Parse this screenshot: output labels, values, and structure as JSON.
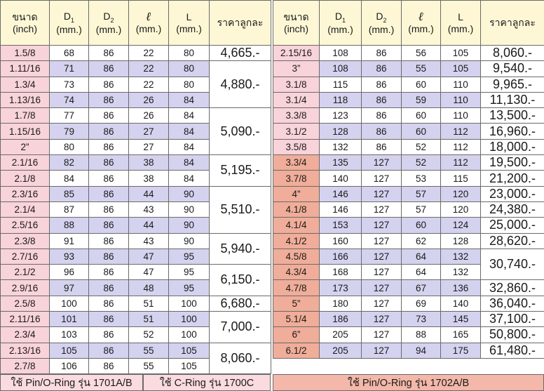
{
  "headers": {
    "size": [
      "ขนาด",
      "(inch)"
    ],
    "d1_main": "D",
    "d1_sub": "1",
    "d2_main": "D",
    "d2_sub": "2",
    "l_symbol": "ℓ",
    "l_unit": "(mm.)",
    "big_l": "L",
    "mm": "(mm.)",
    "price": "ราคาลูกละ"
  },
  "left_rows": [
    {
      "size": "1.5/8",
      "d1": "68",
      "d2": "86",
      "l": "22",
      "L": "80"
    },
    {
      "size": "1.11/16",
      "d1": "71",
      "d2": "86",
      "l": "22",
      "L": "80"
    },
    {
      "size": "1.3/4",
      "d1": "73",
      "d2": "86",
      "l": "22",
      "L": "80"
    },
    {
      "size": "1.13/16",
      "d1": "74",
      "d2": "86",
      "l": "26",
      "L": "84"
    },
    {
      "size": "1.7/8",
      "d1": "77",
      "d2": "86",
      "l": "26",
      "L": "84"
    },
    {
      "size": "1.15/16",
      "d1": "79",
      "d2": "86",
      "l": "27",
      "L": "84"
    },
    {
      "size": "2”",
      "d1": "80",
      "d2": "86",
      "l": "27",
      "L": "84"
    },
    {
      "size": "2.1/16",
      "d1": "82",
      "d2": "86",
      "l": "38",
      "L": "84"
    },
    {
      "size": "2.1/8",
      "d1": "84",
      "d2": "86",
      "l": "38",
      "L": "84"
    },
    {
      "size": "2.3/16",
      "d1": "85",
      "d2": "86",
      "l": "44",
      "L": "90"
    },
    {
      "size": "2.1/4",
      "d1": "87",
      "d2": "86",
      "l": "43",
      "L": "90"
    },
    {
      "size": "2.5/16",
      "d1": "88",
      "d2": "86",
      "l": "44",
      "L": "90"
    },
    {
      "size": "2.3/8",
      "d1": "91",
      "d2": "86",
      "l": "43",
      "L": "90"
    },
    {
      "size": "2.7/16",
      "d1": "93",
      "d2": "86",
      "l": "47",
      "L": "95"
    },
    {
      "size": "2.1/2",
      "d1": "96",
      "d2": "86",
      "l": "47",
      "L": "95"
    },
    {
      "size": "2.9/16",
      "d1": "97",
      "d2": "86",
      "l": "48",
      "L": "95"
    },
    {
      "size": "2.5/8",
      "d1": "100",
      "d2": "86",
      "l": "51",
      "L": "100"
    },
    {
      "size": "2.11/16",
      "d1": "101",
      "d2": "86",
      "l": "51",
      "L": "100"
    },
    {
      "size": "2.3/4",
      "d1": "103",
      "d2": "86",
      "l": "52",
      "L": "100"
    },
    {
      "size": "2.13/16",
      "d1": "105",
      "d2": "86",
      "l": "55",
      "L": "105"
    },
    {
      "size": "2.7/8",
      "d1": "106",
      "d2": "86",
      "l": "55",
      "L": "105"
    }
  ],
  "left_prices": [
    "4,665.-",
    "4,880.-",
    "5,090.-",
    "5,195.-",
    "5,510.-",
    "5,940.-",
    "6,150.-",
    "6,680.-",
    "7,000.-",
    "8,060.-"
  ],
  "right_rows": [
    {
      "size": "2.15/16",
      "d1": "108",
      "d2": "86",
      "l": "56",
      "L": "105"
    },
    {
      "size": "3”",
      "d1": "108",
      "d2": "86",
      "l": "55",
      "L": "105"
    },
    {
      "size": "3.1/8",
      "d1": "115",
      "d2": "86",
      "l": "60",
      "L": "110"
    },
    {
      "size": "3.1/4",
      "d1": "118",
      "d2": "86",
      "l": "59",
      "L": "110"
    },
    {
      "size": "3.3/8",
      "d1": "123",
      "d2": "86",
      "l": "60",
      "L": "110"
    },
    {
      "size": "3.1/2",
      "d1": "128",
      "d2": "86",
      "l": "60",
      "L": "112"
    },
    {
      "size": "3.5/8",
      "d1": "132",
      "d2": "86",
      "l": "52",
      "L": "112"
    },
    {
      "size": "3.3/4",
      "d1": "135",
      "d2": "127",
      "l": "52",
      "L": "112"
    },
    {
      "size": "3.7/8",
      "d1": "140",
      "d2": "127",
      "l": "53",
      "L": "115"
    },
    {
      "size": "4”",
      "d1": "146",
      "d2": "127",
      "l": "57",
      "L": "120"
    },
    {
      "size": "4.1/8",
      "d1": "146",
      "d2": "127",
      "l": "57",
      "L": "120"
    },
    {
      "size": "4.1/4",
      "d1": "153",
      "d2": "127",
      "l": "60",
      "L": "124"
    },
    {
      "size": "4.1/2",
      "d1": "160",
      "d2": "127",
      "l": "62",
      "L": "128"
    },
    {
      "size": "4.5/8",
      "d1": "166",
      "d2": "127",
      "l": "64",
      "L": "132"
    },
    {
      "size": "4.3/4",
      "d1": "168",
      "d2": "127",
      "l": "64",
      "L": "132"
    },
    {
      "size": "4.7/8",
      "d1": "173",
      "d2": "127",
      "l": "67",
      "L": "136"
    },
    {
      "size": "5”",
      "d1": "180",
      "d2": "127",
      "l": "69",
      "L": "140"
    },
    {
      "size": "5.1/4",
      "d1": "186",
      "d2": "127",
      "l": "73",
      "L": "145"
    },
    {
      "size": "6”",
      "d1": "205",
      "d2": "127",
      "l": "88",
      "L": "165"
    },
    {
      "size": "6.1/2",
      "d1": "205",
      "d2": "127",
      "l": "94",
      "L": "175"
    }
  ],
  "right_prices": [
    "8,060.-",
    "9,540.-",
    "9,965.-",
    "11,130.-",
    "13,500.-",
    "16,960.-",
    "18,000.-",
    "19,500.-",
    "21,200.-",
    "23,000.-",
    "24,380.-",
    "25,000.-",
    "28,620.-",
    "30,740.-",
    "32,860.-",
    "36,040.-",
    "37,100.-",
    "50,800.-",
    "61,480.-"
  ],
  "footer": {
    "left_a": "ใช้ Pin/O-Ring รุ่น 1701A/B",
    "left_b": "ใช้ C-Ring รุ่น 1700C",
    "right": "ใช้ Pin/O-Ring รุ่น 1702A/B"
  },
  "colors": {
    "header_bg": "#fdf7d5",
    "size_pink": "#f8d3d9",
    "size_salmon": "#f0ad99",
    "row_lavender": "#d5d2ef",
    "row_pink": "#fadbe0",
    "footer_right": "#f3b8a9"
  }
}
